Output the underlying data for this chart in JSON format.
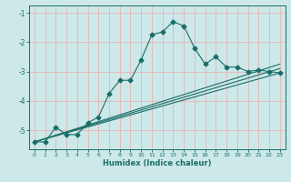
{
  "xlabel": "Humidex (Indice chaleur)",
  "bg_color": "#cce8e8",
  "grid_color": "#e8b4b4",
  "line_color": "#1a6e6a",
  "xlim": [
    -0.5,
    23.5
  ],
  "ylim": [
    -5.65,
    -0.75
  ],
  "yticks": [
    -5,
    -4,
    -3,
    -2,
    -1
  ],
  "xticks": [
    0,
    1,
    2,
    3,
    4,
    5,
    6,
    7,
    8,
    9,
    10,
    11,
    12,
    13,
    14,
    15,
    16,
    17,
    18,
    19,
    20,
    21,
    22,
    23
  ],
  "line1_x": [
    0,
    1,
    2,
    3,
    4,
    5,
    6,
    7,
    8,
    9,
    10,
    11,
    12,
    13,
    14,
    15,
    16,
    17,
    18,
    19,
    20,
    21,
    22,
    23
  ],
  "line1_y": [
    -5.4,
    -5.4,
    -4.9,
    -5.15,
    -5.15,
    -4.75,
    -4.55,
    -3.75,
    -3.3,
    -3.3,
    -2.6,
    -1.75,
    -1.65,
    -1.3,
    -1.45,
    -2.2,
    -2.75,
    -2.5,
    -2.85,
    -2.85,
    -3.0,
    -2.95,
    -3.0,
    -3.05
  ],
  "line2_x": [
    0,
    23
  ],
  "line2_y": [
    -5.4,
    -3.05
  ],
  "line3_x": [
    0,
    23
  ],
  "line3_y": [
    -5.4,
    -2.9
  ],
  "line4_x": [
    0,
    23
  ],
  "line4_y": [
    -5.4,
    -2.75
  ]
}
